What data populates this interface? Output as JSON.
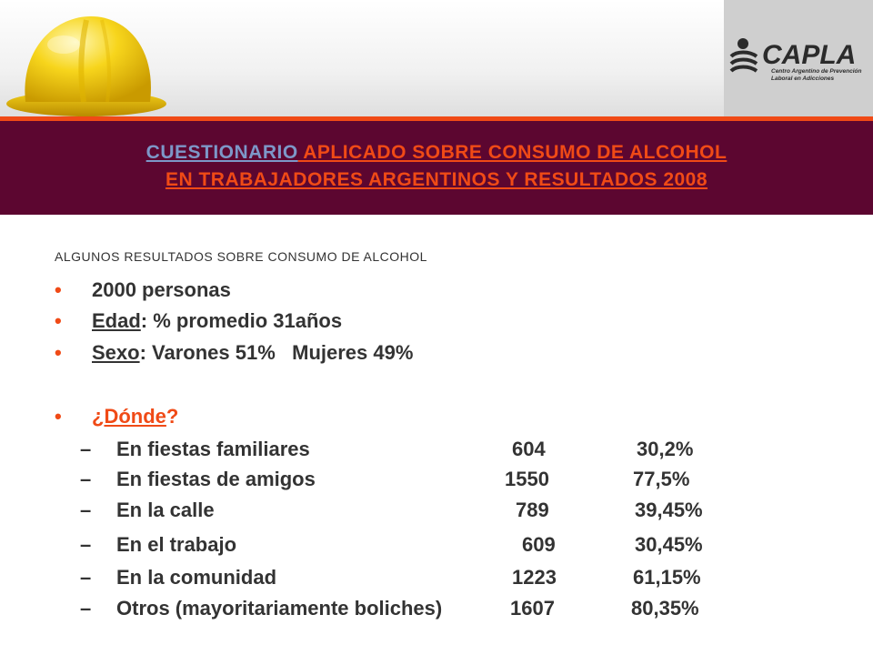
{
  "title": {
    "line1_part1": "CUESTIONARIO",
    "line1_part2": " APLICADO SOBRE CONSUMO DE ALCOHOL",
    "line2": "EN TRABAJADORES ARGENTINOS Y RESULTADOS 2008"
  },
  "logo": {
    "name": "CAPLA",
    "tagline_line1": "Centro Argentino de Prevención",
    "tagline_line2": "Laboral en Adicciones"
  },
  "subtitle": "ALGUNOS RESULTADOS SOBRE CONSUMO DE ALCOHOL",
  "bullets": {
    "personas": "2000 personas",
    "edad_label": "Edad",
    "edad_value": ": % promedio 31años",
    "sexo_label": "Sexo",
    "sexo_value": ": Varones 51%   Mujeres 49%",
    "donde_prefix": "¿",
    "donde_label": "Dónde",
    "donde_suffix": "?"
  },
  "rows": [
    {
      "dash": "–",
      "label": "En fiestas familiares",
      "count": "604",
      "pct": "30,2%"
    },
    {
      "dash": "–",
      "label": "En fiestas de amigos",
      "count": "1550",
      "pct": "77,5%"
    },
    {
      "dash": "–",
      "label": "En la calle",
      "count": "789",
      "pct": "39,45%"
    },
    {
      "dash": "–",
      "label": "En el trabajo",
      "count": "609",
      "pct": "30,45%"
    },
    {
      "dash": "–",
      "label": "En la comunidad",
      "count": "1223",
      "pct": "61,15%"
    },
    {
      "dash": "–",
      "label": "Otros (mayoritariamente boliches)",
      "count": "1607",
      "pct": "80,35%"
    }
  ],
  "colors": {
    "accent": "#f04a16",
    "band": "#5c0630",
    "title_blue": "#7d97c8",
    "text": "#333333"
  },
  "icons": {
    "helmet": "hard-hat-icon",
    "logo": "capla-logo"
  }
}
